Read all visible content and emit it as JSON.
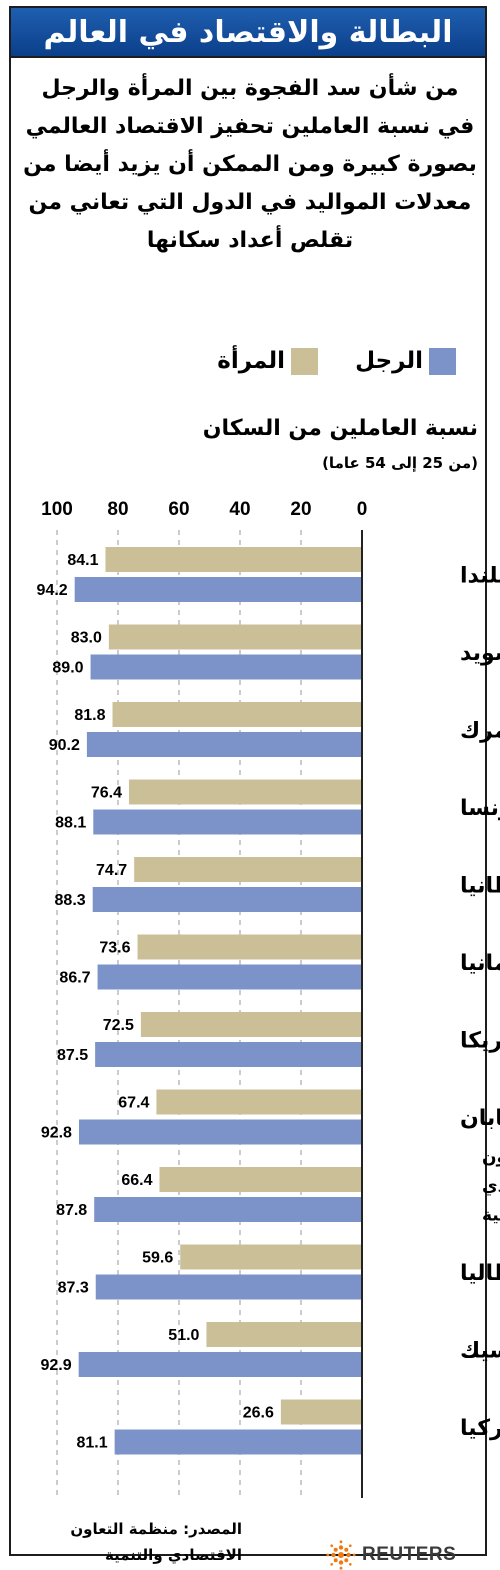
{
  "title": "البطالة والاقتصاد في العالم",
  "subtitle": "من شأن سد الفجوة بين المرأة والرجل في نسبة العاملين تحفيز الاقتصاد العالمي بصورة كبيرة ومن الممكن أن يزيد أيضا من معدلات المواليد في الدول التي تعاني من تقلص أعداد سكانها",
  "legend": {
    "men": "الرجل",
    "women": "المرأة"
  },
  "colors": {
    "title_bar": "#1459a8",
    "men": "#7c93c9",
    "women": "#cbbf97",
    "frame": "#1d1d1d"
  },
  "source": {
    "line1": "المصدر: منظمة التعاون",
    "line2": "الاقتصادي والتنمية"
  },
  "logo": {
    "text": "REUTERS",
    "icon": "reuters-dot-sphere-icon"
  },
  "chart_data": {
    "type": "bar",
    "orientation": "horizontal",
    "xlabel": "نسبة العاملين من السكان",
    "xlabel_note": "(من 25 إلى 54 عاما)",
    "xlim": [
      0,
      100
    ],
    "x_ticks": [
      "0",
      "20",
      "40",
      "60",
      "80",
      "100"
    ],
    "x_direction": "right-to-left",
    "grid": "dashed vertical lines",
    "legend_placement": "top-right",
    "categories": [
      "ايسلندا",
      "السويد",
      "الدنمرك",
      "فرنسا",
      "بريطانيا",
      "المانيا",
      "أمريكا",
      "اليابان",
      "منظمة التعاون الاقتصادي والتنمية",
      "إيطاليا",
      "المكسيك",
      "تركيا"
    ],
    "series": [
      {
        "name": "المرأة",
        "values": [
          84.1,
          83.0,
          81.8,
          76.4,
          74.7,
          73.6,
          72.5,
          67.4,
          66.4,
          59.6,
          51.0,
          26.6
        ],
        "labels": [
          "84.1",
          "83.0",
          "81.8",
          "76.4",
          "74.7",
          "73.6",
          "72.5",
          "67.4",
          "66.4",
          "59.6",
          "51.0",
          "26.6"
        ]
      },
      {
        "name": "الرجل",
        "values": [
          94.2,
          89.0,
          90.2,
          88.1,
          88.3,
          86.7,
          87.5,
          92.8,
          87.8,
          87.3,
          92.9,
          81.1
        ],
        "labels": [
          "94.2",
          "89.0",
          "90.2",
          "88.1",
          "88.3",
          "86.7",
          "87.5",
          "92.8",
          "87.8",
          "87.3",
          "92.9",
          "81.1"
        ]
      }
    ]
  }
}
